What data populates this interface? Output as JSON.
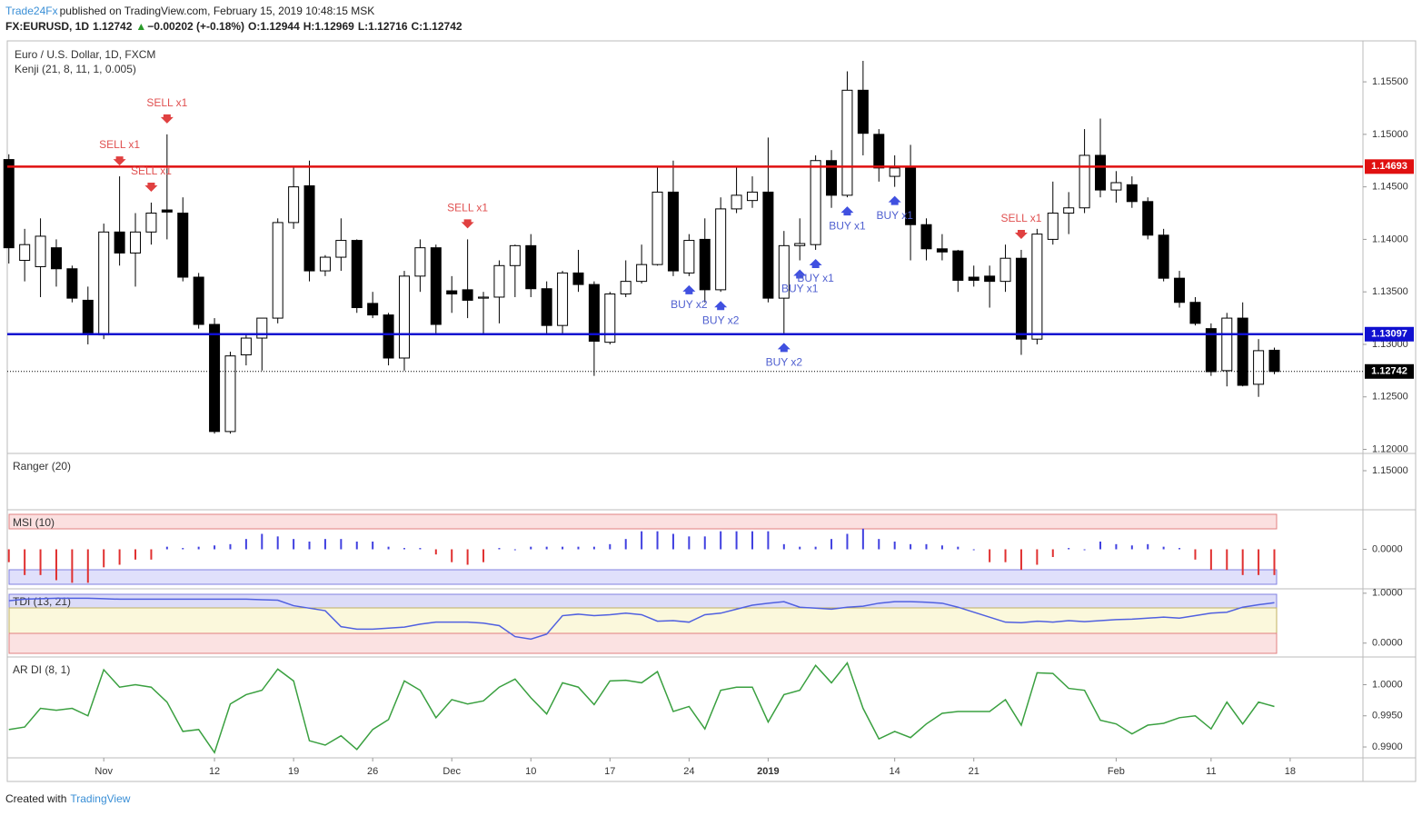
{
  "header": {
    "author": "Trade24Fx",
    "published": "published on TradingView.com, February 15, 2019 10:48:15 MSK",
    "symbol": "FX:EURUSD, 1D",
    "price": "1.12742",
    "change_arrow": "▲",
    "change": "−0.00202 (+-0.18%)",
    "ohlc": [
      "O:1.12944",
      "H:1.12969",
      "L:1.12716",
      "C:1.12742"
    ]
  },
  "footer": {
    "created": "Created with",
    "brand": "TradingView"
  },
  "chart_data": [
    {
      "type": "candlestick",
      "title": "Euro / U.S. Dollar, 1D, FXCM",
      "subtitle": "Kenji (21, 8, 11, 1, 0.005)",
      "xlim": [
        -0.1,
        85.6
      ],
      "xticks": [
        {
          "value": 6,
          "label": "Nov"
        },
        {
          "value": 13,
          "label": "12"
        },
        {
          "value": 18,
          "label": "19"
        },
        {
          "value": 23,
          "label": "26"
        },
        {
          "value": 28,
          "label": "Dec"
        },
        {
          "value": 33,
          "label": "10"
        },
        {
          "value": 38,
          "label": "17"
        },
        {
          "value": 43,
          "label": "24"
        },
        {
          "value": 48,
          "label": "2019"
        },
        {
          "value": 56,
          "label": "14"
        },
        {
          "value": 61,
          "label": "21"
        },
        {
          "value": 70,
          "label": "Feb"
        },
        {
          "value": 76,
          "label": "11"
        },
        {
          "value": 81,
          "label": "18"
        }
      ],
      "ylim": [
        1.1197,
        1.1589
      ],
      "yticks": [
        {
          "value": 1.12,
          "label": "1.12000"
        },
        {
          "value": 1.125,
          "label": "1.12500"
        },
        {
          "value": 1.13,
          "label": "1.13000"
        },
        {
          "value": 1.135,
          "label": "1.13500"
        },
        {
          "value": 1.14,
          "label": "1.14000"
        },
        {
          "value": 1.145,
          "label": "1.14500"
        },
        {
          "value": 1.15,
          "label": "1.15000"
        },
        {
          "value": 1.155,
          "label": "1.15500"
        }
      ],
      "up_color": "#ffffff",
      "down_color": "#000000",
      "open": [
        1.1476,
        1.138,
        1.1374,
        1.1392,
        1.1372,
        1.1342,
        1.1309,
        1.1407,
        1.1387,
        1.1407,
        1.1428,
        1.1425,
        1.1364,
        1.1319,
        1.1217,
        1.129,
        1.1306,
        1.1325,
        1.1416,
        1.1451,
        1.137,
        1.1383,
        1.1399,
        1.1339,
        1.1328,
        1.1287,
        1.1365,
        1.1392,
        1.1351,
        1.1352,
        1.1344,
        1.1345,
        1.1375,
        1.1394,
        1.1353,
        1.1318,
        1.1368,
        1.1357,
        1.1302,
        1.1348,
        1.136,
        1.1376,
        1.1445,
        1.1368,
        1.14,
        1.1352,
        1.1429,
        1.1437,
        1.1445,
        1.1344,
        1.1394,
        1.1395,
        1.1475,
        1.1442,
        1.1542,
        1.15,
        1.146,
        1.1468,
        1.1414,
        1.1391,
        1.1389,
        1.1364,
        1.1365,
        1.136,
        1.1382,
        1.1305,
        1.14,
        1.1425,
        1.143,
        1.148,
        1.1447,
        1.1452,
        1.1436,
        1.1404,
        1.1363,
        1.134,
        1.1315,
        1.1275,
        1.1325,
        1.1262,
        1.12944
      ],
      "high": [
        1.1481,
        1.141,
        1.142,
        1.14,
        1.1375,
        1.1355,
        1.1415,
        1.146,
        1.1425,
        1.1435,
        1.15,
        1.144,
        1.1368,
        1.1325,
        1.1293,
        1.131,
        1.1325,
        1.142,
        1.147,
        1.1475,
        1.1385,
        1.142,
        1.14,
        1.135,
        1.133,
        1.137,
        1.14,
        1.1395,
        1.1365,
        1.14,
        1.135,
        1.138,
        1.1395,
        1.1405,
        1.136,
        1.137,
        1.139,
        1.136,
        1.135,
        1.138,
        1.1395,
        1.147,
        1.1475,
        1.1405,
        1.142,
        1.144,
        1.147,
        1.146,
        1.1497,
        1.1408,
        1.142,
        1.148,
        1.1485,
        1.156,
        1.157,
        1.1505,
        1.148,
        1.149,
        1.142,
        1.1405,
        1.139,
        1.1375,
        1.1375,
        1.1395,
        1.139,
        1.141,
        1.1455,
        1.1445,
        1.1505,
        1.1515,
        1.1465,
        1.146,
        1.144,
        1.141,
        1.137,
        1.1345,
        1.132,
        1.133,
        1.134,
        1.1305,
        1.12969
      ],
      "low": [
        1.1377,
        1.136,
        1.1345,
        1.1355,
        1.134,
        1.13,
        1.1305,
        1.1375,
        1.1355,
        1.1395,
        1.14,
        1.136,
        1.1315,
        1.1215,
        1.1215,
        1.128,
        1.1275,
        1.132,
        1.141,
        1.136,
        1.1365,
        1.137,
        1.133,
        1.1325,
        1.128,
        1.1275,
        1.135,
        1.131,
        1.133,
        1.1325,
        1.131,
        1.132,
        1.1345,
        1.1345,
        1.131,
        1.131,
        1.135,
        1.127,
        1.13,
        1.1345,
        1.1358,
        1.1375,
        1.1365,
        1.1365,
        1.134,
        1.135,
        1.1425,
        1.143,
        1.134,
        1.131,
        1.138,
        1.139,
        1.143,
        1.144,
        1.148,
        1.1455,
        1.145,
        1.138,
        1.138,
        1.138,
        1.135,
        1.1355,
        1.1335,
        1.135,
        1.129,
        1.13,
        1.1395,
        1.1405,
        1.1425,
        1.144,
        1.1435,
        1.143,
        1.14,
        1.136,
        1.1335,
        1.1318,
        1.127,
        1.126,
        1.126,
        1.125,
        1.12716
      ],
      "close": [
        1.1392,
        1.1395,
        1.1403,
        1.1372,
        1.1344,
        1.1311,
        1.1407,
        1.1387,
        1.1407,
        1.1425,
        1.1426,
        1.1364,
        1.1319,
        1.1217,
        1.1289,
        1.1306,
        1.1325,
        1.1416,
        1.145,
        1.137,
        1.1383,
        1.1399,
        1.1335,
        1.1328,
        1.1287,
        1.1365,
        1.1392,
        1.1319,
        1.1348,
        1.1342,
        1.1345,
        1.1375,
        1.1394,
        1.1353,
        1.1318,
        1.1368,
        1.1357,
        1.1303,
        1.1348,
        1.136,
        1.1376,
        1.1445,
        1.137,
        1.1399,
        1.1352,
        1.1429,
        1.1442,
        1.1445,
        1.1344,
        1.1394,
        1.1396,
        1.1475,
        1.1442,
        1.1542,
        1.1501,
        1.1468,
        1.1468,
        1.1414,
        1.1391,
        1.1388,
        1.1361,
        1.1361,
        1.136,
        1.1382,
        1.1305,
        1.1405,
        1.1425,
        1.143,
        1.148,
        1.1447,
        1.1454,
        1.1436,
        1.1404,
        1.1363,
        1.134,
        1.132,
        1.1274,
        1.1325,
        1.1261,
        1.1294,
        1.12742
      ],
      "levels": [
        {
          "value": 1.14693,
          "color": "#e01010",
          "style": "solid"
        },
        {
          "value": 1.13097,
          "color": "#1010d0",
          "style": "solid"
        },
        {
          "value": 1.12742,
          "color": "#000000",
          "style": "dotted"
        }
      ],
      "annotations": [
        {
          "text": "SELL x1",
          "x": 10,
          "side": "above"
        },
        {
          "text": "SELL x1",
          "x": 7,
          "side": "above"
        },
        {
          "text": "SELL x1",
          "x": 9,
          "side": "above"
        },
        {
          "text": "SELL x1",
          "x": 29,
          "side": "above"
        },
        {
          "text": "SELL x1",
          "x": 64,
          "side": "above"
        },
        {
          "text": "BUY x2",
          "x": 43,
          "side": "below"
        },
        {
          "text": "BUY x2",
          "x": 45,
          "side": "below"
        },
        {
          "text": "BUY x2",
          "x": 49,
          "side": "below"
        },
        {
          "text": "BUY x1",
          "x": 50,
          "side": "below"
        },
        {
          "text": "BUY x1",
          "x": 51,
          "side": "below"
        },
        {
          "text": "BUY x1",
          "x": 53,
          "side": "below"
        },
        {
          "text": "BUY x1",
          "x": 56,
          "side": "below"
        }
      ]
    },
    {
      "type": "line",
      "title": "Ranger (20)",
      "ylim": [
        1.1325,
        1.1575
      ],
      "yticks": [
        {
          "value": 1.15,
          "label": "1.15000"
        }
      ]
    },
    {
      "type": "bar",
      "title": "MSI (10)",
      "ylim": [
        -1.5,
        1.5
      ],
      "yticks": [
        {
          "value": 0,
          "label": "0.0000"
        }
      ],
      "color": "#4040e0",
      "negative_color": "#e03030",
      "values": [
        -0.5,
        -1.0,
        -1.0,
        -1.2,
        -1.3,
        -1.3,
        -0.7,
        -0.6,
        -0.4,
        -0.4,
        0.1,
        0.05,
        0.1,
        0.15,
        0.2,
        0.4,
        0.6,
        0.5,
        0.4,
        0.3,
        0.4,
        0.4,
        0.3,
        0.3,
        0.1,
        0.05,
        0.05,
        -0.2,
        -0.5,
        -0.6,
        -0.5,
        0.05,
        0,
        0.1,
        0.1,
        0.1,
        0.1,
        0.1,
        0.2,
        0.4,
        0.7,
        0.7,
        0.6,
        0.5,
        0.5,
        0.7,
        0.7,
        0.7,
        0.7,
        0.2,
        0.1,
        0.1,
        0.4,
        0.6,
        0.8,
        0.4,
        0.3,
        0.2,
        0.2,
        0.15,
        0.1,
        0,
        -0.5,
        -0.5,
        -0.8,
        -0.6,
        -0.3,
        0.05,
        0,
        0.3,
        0.2,
        0.15,
        0.2,
        0.1,
        0.05,
        -0.4,
        -0.8,
        -0.8,
        -1.0,
        -1.0,
        -1.0
      ]
    },
    {
      "type": "line",
      "title": "TDI (13, 21)",
      "ylim": [
        -0.26,
        1.07
      ],
      "yticks": [
        {
          "value": 1,
          "label": "1.0000"
        },
        {
          "value": 0,
          "label": "0.0000"
        }
      ],
      "color": "#5060e0",
      "values": [
        0.85,
        0.88,
        0.89,
        0.9,
        0.9,
        0.9,
        0.89,
        0.88,
        0.88,
        0.88,
        0.88,
        0.88,
        0.88,
        0.88,
        0.88,
        0.88,
        0.87,
        0.86,
        0.75,
        0.7,
        0.65,
        0.33,
        0.28,
        0.28,
        0.3,
        0.32,
        0.38,
        0.42,
        0.42,
        0.42,
        0.4,
        0.35,
        0.13,
        0.08,
        0.18,
        0.55,
        0.58,
        0.55,
        0.57,
        0.6,
        0.57,
        0.44,
        0.45,
        0.42,
        0.57,
        0.6,
        0.68,
        0.76,
        0.8,
        0.83,
        0.72,
        0.7,
        0.68,
        0.72,
        0.74,
        0.8,
        0.83,
        0.83,
        0.82,
        0.8,
        0.72,
        0.62,
        0.52,
        0.42,
        0.41,
        0.44,
        0.42,
        0.45,
        0.43,
        0.45,
        0.47,
        0.48,
        0.5,
        0.52,
        0.5,
        0.55,
        0.6,
        0.62,
        0.72,
        0.77,
        0.81
      ]
    },
    {
      "type": "line",
      "title": "AR DI (8, 1)",
      "ylim": [
        0.9884,
        1.0043
      ],
      "yticks": [
        {
          "value": 1,
          "label": "1.0000"
        },
        {
          "value": 0.995,
          "label": "0.9950"
        },
        {
          "value": 0.99,
          "label": "0.9900"
        }
      ],
      "color": "#3aa040",
      "values": [
        0.9928,
        0.9932,
        0.9962,
        0.9959,
        0.9962,
        0.995,
        1.0024,
        0.9996,
        1.0,
        0.9996,
        0.9972,
        0.9925,
        0.9928,
        0.9891,
        0.9969,
        0.9984,
        0.9991,
        1.0025,
        1.0006,
        0.991,
        0.9903,
        0.9918,
        0.9896,
        0.9928,
        0.9944,
        1.0006,
        0.9991,
        0.9947,
        0.9976,
        0.9969,
        0.9974,
        0.9996,
        1.0009,
        0.9979,
        0.9953,
        1.0003,
        0.9996,
        0.9968,
        1.0006,
        1.0007,
        1.0003,
        1.0021,
        0.9957,
        0.9965,
        0.9929,
        0.9991,
        0.9996,
        0.9996,
        0.994,
        0.9984,
        0.9991,
        1.0031,
        1.0003,
        1.0035,
        0.9962,
        0.9913,
        0.9925,
        0.9915,
        0.9937,
        0.9954,
        0.9957,
        0.9957,
        0.9957,
        0.9976,
        0.9935,
        1.0019,
        1.0018,
        0.9994,
        0.9991,
        0.9943,
        0.9937,
        0.9921,
        0.9935,
        0.9938,
        0.9947,
        0.995,
        0.9929,
        0.9972,
        0.9937,
        0.9972,
        0.9965
      ]
    }
  ]
}
